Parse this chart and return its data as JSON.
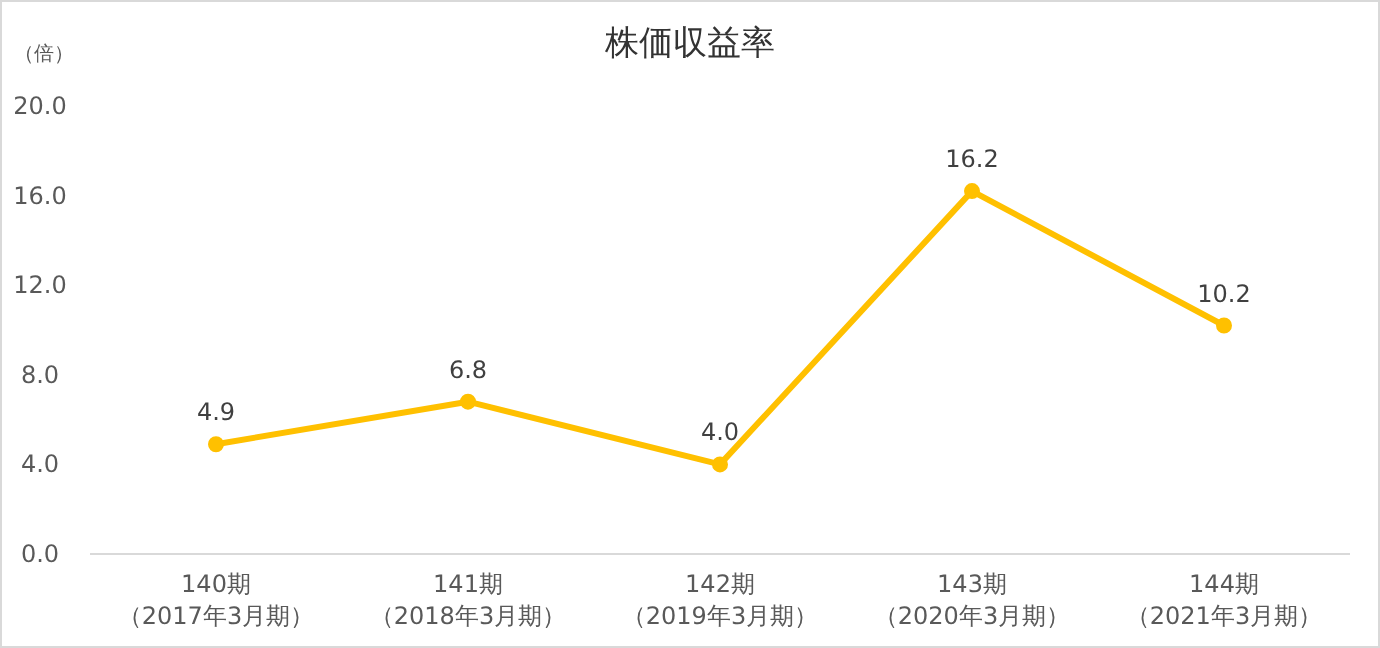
{
  "chart_data": {
    "type": "line",
    "title": "株価収益率",
    "ylabel": "（倍）",
    "categories": [
      "140期（2017年3月期）",
      "141期（2018年3月期）",
      "142期（2019年3月期）",
      "143期（2020年3月期）",
      "144期（2021年3月期）"
    ],
    "series": [
      {
        "color": "#ffc000",
        "values": [
          4.9,
          6.8,
          4.0,
          16.2,
          10.2
        ],
        "value_labels": [
          "4.9",
          "6.8",
          "4.0",
          "16.2",
          "10.2"
        ]
      }
    ],
    "ylim": [
      0,
      20
    ],
    "yticks": [
      {
        "value": 0,
        "label": "0.0"
      },
      {
        "value": 4,
        "label": "4.0"
      },
      {
        "value": 8,
        "label": "8.0"
      },
      {
        "value": 12,
        "label": "12.0"
      },
      {
        "value": 16,
        "label": "16.0"
      },
      {
        "value": 20,
        "label": "20.0"
      }
    ],
    "marker": "circle",
    "line_style": "solid",
    "grid": false
  }
}
